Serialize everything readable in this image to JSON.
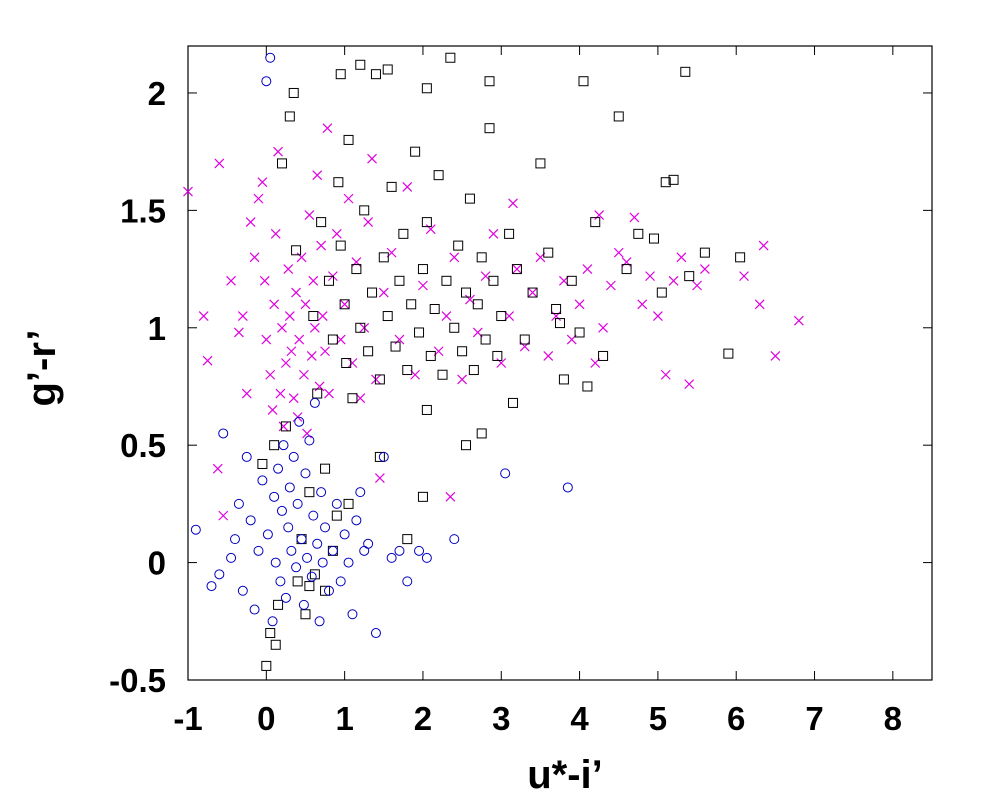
{
  "chart_data": {
    "type": "scatter",
    "xlabel": "u*-i’",
    "ylabel": "g’-r’",
    "xlim": [
      -1,
      8.5
    ],
    "ylim": [
      -0.5,
      2.2
    ],
    "xticks": [
      -1,
      0,
      1,
      2,
      3,
      4,
      5,
      6,
      7,
      8
    ],
    "yticks": [
      -0.5,
      0,
      0.5,
      1,
      1.5,
      2
    ],
    "xtick_labels": [
      "-1",
      "0",
      "1",
      "2",
      "3",
      "4",
      "5",
      "6",
      "7",
      "8"
    ],
    "ytick_labels": [
      "-0.5",
      "0",
      "0.5",
      "1",
      "1.5",
      "2"
    ],
    "grid": false,
    "legend": "none",
    "series": [
      {
        "marker": "x",
        "color": "#e000e0",
        "points": [
          [
            -1.0,
            1.58
          ],
          [
            -0.8,
            1.05
          ],
          [
            -0.75,
            0.86
          ],
          [
            -0.62,
            0.4
          ],
          [
            -0.55,
            0.2
          ],
          [
            -0.6,
            1.7
          ],
          [
            -0.45,
            1.2
          ],
          [
            -0.35,
            0.98
          ],
          [
            -0.3,
            1.05
          ],
          [
            -0.25,
            0.72
          ],
          [
            -0.2,
            1.45
          ],
          [
            -0.15,
            1.3
          ],
          [
            -0.1,
            1.55
          ],
          [
            -0.05,
            1.62
          ],
          [
            -0.02,
            1.2
          ],
          [
            0.0,
            0.95
          ],
          [
            0.05,
            0.8
          ],
          [
            0.08,
            0.65
          ],
          [
            0.1,
            1.1
          ],
          [
            0.12,
            1.4
          ],
          [
            0.15,
            1.75
          ],
          [
            0.18,
            0.72
          ],
          [
            0.2,
            1.0
          ],
          [
            0.22,
            0.58
          ],
          [
            0.25,
            0.85
          ],
          [
            0.28,
            1.25
          ],
          [
            0.3,
            1.05
          ],
          [
            0.32,
            0.9
          ],
          [
            0.35,
            0.7
          ],
          [
            0.38,
            1.15
          ],
          [
            0.4,
            0.62
          ],
          [
            0.42,
            0.95
          ],
          [
            0.45,
            1.3
          ],
          [
            0.48,
            0.8
          ],
          [
            0.5,
            1.1
          ],
          [
            0.52,
            0.55
          ],
          [
            0.55,
            1.48
          ],
          [
            0.58,
            0.88
          ],
          [
            0.6,
            1.2
          ],
          [
            0.62,
            1.0
          ],
          [
            0.65,
            1.65
          ],
          [
            0.68,
            0.75
          ],
          [
            0.7,
            1.35
          ],
          [
            0.72,
            1.05
          ],
          [
            0.75,
            0.9
          ],
          [
            0.78,
            1.85
          ],
          [
            0.8,
            0.72
          ],
          [
            0.85,
            1.22
          ],
          [
            0.9,
            1.4
          ],
          [
            0.95,
            0.95
          ],
          [
            1.0,
            1.1
          ],
          [
            1.05,
            1.55
          ],
          [
            1.1,
            0.85
          ],
          [
            1.15,
            1.28
          ],
          [
            1.2,
            0.7
          ],
          [
            1.25,
            1.0
          ],
          [
            1.3,
            1.45
          ],
          [
            1.35,
            1.72
          ],
          [
            1.4,
            0.78
          ],
          [
            1.5,
            1.15
          ],
          [
            1.6,
            1.32
          ],
          [
            1.7,
            0.95
          ],
          [
            1.8,
            1.6
          ],
          [
            1.9,
            0.8
          ],
          [
            2.0,
            1.18
          ],
          [
            2.1,
            1.42
          ],
          [
            2.2,
            0.9
          ],
          [
            2.3,
            1.05
          ],
          [
            2.4,
            1.3
          ],
          [
            2.5,
            0.78
          ],
          [
            2.6,
            1.12
          ],
          [
            2.7,
            0.98
          ],
          [
            2.8,
            1.22
          ],
          [
            2.9,
            1.4
          ],
          [
            3.0,
            0.85
          ],
          [
            3.1,
            1.05
          ],
          [
            3.2,
            1.25
          ],
          [
            3.3,
            0.92
          ],
          [
            3.4,
            1.15
          ],
          [
            3.5,
            1.3
          ],
          [
            3.6,
            0.88
          ],
          [
            3.7,
            1.05
          ],
          [
            3.8,
            1.2
          ],
          [
            3.9,
            0.95
          ],
          [
            4.0,
            1.1
          ],
          [
            4.1,
            1.25
          ],
          [
            4.2,
            0.85
          ],
          [
            4.3,
            1.0
          ],
          [
            4.4,
            1.18
          ],
          [
            4.5,
            1.32
          ],
          [
            4.6,
            1.28
          ],
          [
            4.8,
            1.1
          ],
          [
            4.9,
            1.22
          ],
          [
            5.0,
            1.05
          ],
          [
            5.1,
            0.8
          ],
          [
            5.2,
            1.2
          ],
          [
            5.3,
            1.3
          ],
          [
            5.4,
            0.76
          ],
          [
            5.5,
            1.18
          ],
          [
            5.6,
            1.25
          ],
          [
            6.1,
            1.22
          ],
          [
            6.3,
            1.1
          ],
          [
            6.35,
            1.35
          ],
          [
            6.5,
            0.88
          ],
          [
            6.8,
            1.03
          ],
          [
            4.7,
            1.47
          ],
          [
            2.35,
            0.28
          ],
          [
            1.45,
            0.36
          ],
          [
            3.15,
            1.53
          ],
          [
            4.25,
            1.48
          ]
        ]
      },
      {
        "marker": "square",
        "color": "#000000",
        "points": [
          [
            -0.05,
            0.42
          ],
          [
            0.0,
            -0.44
          ],
          [
            0.05,
            -0.3
          ],
          [
            0.1,
            0.5
          ],
          [
            0.12,
            -0.35
          ],
          [
            0.15,
            -0.18
          ],
          [
            0.2,
            1.7
          ],
          [
            0.25,
            0.58
          ],
          [
            0.3,
            1.9
          ],
          [
            0.35,
            2.0
          ],
          [
            0.38,
            1.33
          ],
          [
            0.4,
            -0.08
          ],
          [
            0.45,
            0.1
          ],
          [
            0.5,
            -0.22
          ],
          [
            0.55,
            0.3
          ],
          [
            0.6,
            1.05
          ],
          [
            0.62,
            -0.05
          ],
          [
            0.65,
            0.72
          ],
          [
            0.7,
            1.45
          ],
          [
            0.75,
            0.4
          ],
          [
            0.8,
            1.2
          ],
          [
            0.85,
            0.95
          ],
          [
            0.9,
            0.2
          ],
          [
            0.92,
            1.62
          ],
          [
            0.95,
            1.35
          ],
          [
            1.0,
            1.1
          ],
          [
            1.02,
            0.85
          ],
          [
            1.05,
            1.8
          ],
          [
            1.1,
            0.7
          ],
          [
            1.15,
            1.25
          ],
          [
            1.2,
            1.0
          ],
          [
            1.25,
            1.5
          ],
          [
            1.3,
            0.9
          ],
          [
            1.35,
            1.15
          ],
          [
            1.4,
            2.08
          ],
          [
            1.45,
            0.78
          ],
          [
            1.5,
            1.3
          ],
          [
            1.55,
            1.05
          ],
          [
            1.6,
            1.6
          ],
          [
            1.65,
            0.92
          ],
          [
            1.7,
            1.2
          ],
          [
            1.75,
            1.4
          ],
          [
            1.8,
            0.82
          ],
          [
            1.85,
            1.1
          ],
          [
            1.9,
            1.75
          ],
          [
            1.95,
            0.98
          ],
          [
            2.0,
            1.25
          ],
          [
            2.05,
            1.45
          ],
          [
            2.1,
            0.88
          ],
          [
            2.15,
            1.08
          ],
          [
            2.2,
            1.65
          ],
          [
            2.25,
            0.8
          ],
          [
            2.3,
            1.2
          ],
          [
            2.35,
            2.15
          ],
          [
            2.4,
            1.0
          ],
          [
            2.45,
            1.35
          ],
          [
            2.5,
            0.9
          ],
          [
            2.55,
            1.15
          ],
          [
            2.6,
            1.55
          ],
          [
            2.65,
            0.82
          ],
          [
            2.7,
            1.1
          ],
          [
            2.75,
            1.3
          ],
          [
            2.8,
            0.95
          ],
          [
            2.85,
            1.85
          ],
          [
            2.9,
            1.2
          ],
          [
            2.95,
            0.88
          ],
          [
            3.0,
            1.05
          ],
          [
            3.1,
            1.4
          ],
          [
            3.15,
            0.68
          ],
          [
            3.2,
            1.25
          ],
          [
            3.3,
            0.95
          ],
          [
            3.4,
            1.15
          ],
          [
            3.5,
            1.7
          ],
          [
            3.6,
            1.32
          ],
          [
            3.7,
            1.08
          ],
          [
            3.8,
            0.78
          ],
          [
            3.9,
            1.2
          ],
          [
            4.05,
            2.05
          ],
          [
            4.1,
            0.75
          ],
          [
            4.2,
            1.45
          ],
          [
            4.3,
            0.88
          ],
          [
            4.5,
            1.9
          ],
          [
            4.6,
            1.25
          ],
          [
            5.1,
            1.62
          ],
          [
            5.2,
            1.63
          ],
          [
            5.35,
            2.09
          ],
          [
            5.4,
            1.22
          ],
          [
            5.6,
            1.32
          ],
          [
            5.9,
            0.89
          ],
          [
            6.05,
            1.3
          ],
          [
            4.95,
            1.38
          ],
          [
            4.75,
            1.4
          ],
          [
            5.05,
            1.15
          ],
          [
            4.0,
            0.98
          ],
          [
            3.75,
            1.02
          ],
          [
            1.2,
            2.12
          ],
          [
            0.95,
            2.08
          ],
          [
            2.05,
            2.02
          ],
          [
            1.55,
            2.1
          ],
          [
            2.85,
            2.05
          ],
          [
            2.0,
            0.28
          ],
          [
            1.8,
            0.1
          ],
          [
            1.45,
            0.45
          ],
          [
            1.05,
            0.25
          ],
          [
            0.75,
            -0.12
          ],
          [
            0.85,
            0.05
          ],
          [
            0.55,
            -0.1
          ],
          [
            2.55,
            0.5
          ],
          [
            2.75,
            0.55
          ],
          [
            2.05,
            0.65
          ]
        ]
      },
      {
        "marker": "circle",
        "color": "#0000c0",
        "points": [
          [
            -0.9,
            0.14
          ],
          [
            -0.7,
            -0.1
          ],
          [
            -0.6,
            -0.05
          ],
          [
            -0.55,
            0.55
          ],
          [
            -0.45,
            0.02
          ],
          [
            -0.4,
            0.1
          ],
          [
            -0.35,
            0.25
          ],
          [
            -0.3,
            -0.12
          ],
          [
            -0.25,
            0.45
          ],
          [
            -0.2,
            0.18
          ],
          [
            -0.15,
            -0.2
          ],
          [
            -0.1,
            0.05
          ],
          [
            -0.05,
            0.35
          ],
          [
            0.0,
            2.05
          ],
          [
            0.02,
            0.12
          ],
          [
            0.05,
            2.15
          ],
          [
            0.08,
            -0.25
          ],
          [
            0.1,
            0.28
          ],
          [
            0.12,
            0.0
          ],
          [
            0.15,
            0.4
          ],
          [
            0.18,
            -0.08
          ],
          [
            0.2,
            0.22
          ],
          [
            0.22,
            0.5
          ],
          [
            0.25,
            -0.15
          ],
          [
            0.28,
            0.15
          ],
          [
            0.3,
            0.32
          ],
          [
            0.32,
            0.05
          ],
          [
            0.35,
            0.45
          ],
          [
            0.38,
            -0.02
          ],
          [
            0.4,
            0.25
          ],
          [
            0.42,
            0.6
          ],
          [
            0.45,
            0.1
          ],
          [
            0.48,
            -0.18
          ],
          [
            0.5,
            0.38
          ],
          [
            0.52,
            0.02
          ],
          [
            0.55,
            0.52
          ],
          [
            0.58,
            -0.06
          ],
          [
            0.6,
            0.2
          ],
          [
            0.62,
            0.68
          ],
          [
            0.65,
            0.08
          ],
          [
            0.68,
            -0.25
          ],
          [
            0.7,
            0.3
          ],
          [
            0.72,
            0.0
          ],
          [
            0.75,
            0.15
          ],
          [
            0.8,
            -0.12
          ],
          [
            0.85,
            0.05
          ],
          [
            0.9,
            0.25
          ],
          [
            0.95,
            -0.08
          ],
          [
            1.0,
            0.12
          ],
          [
            1.05,
            0.0
          ],
          [
            1.1,
            -0.22
          ],
          [
            1.15,
            0.18
          ],
          [
            1.2,
            0.3
          ],
          [
            1.25,
            0.05
          ],
          [
            1.3,
            0.08
          ],
          [
            1.4,
            -0.3
          ],
          [
            1.5,
            0.45
          ],
          [
            1.6,
            0.02
          ],
          [
            1.7,
            0.05
          ],
          [
            1.8,
            -0.08
          ],
          [
            1.95,
            0.05
          ],
          [
            2.05,
            0.02
          ],
          [
            2.4,
            0.1
          ],
          [
            3.05,
            0.38
          ],
          [
            3.85,
            0.32
          ]
        ]
      }
    ]
  }
}
